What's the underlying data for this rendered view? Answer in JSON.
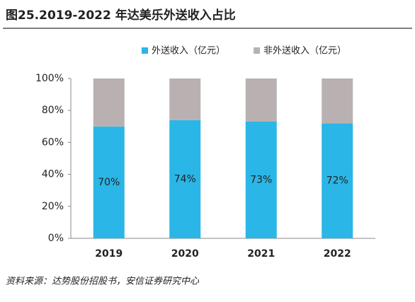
{
  "chart_data": {
    "type": "stacked_bar",
    "title": "图25.2019-2022 年达美乐外送收入占比",
    "categories": [
      "2019",
      "2020",
      "2021",
      "2022"
    ],
    "series": [
      {
        "name": "外送收入（亿元）",
        "color": "#2ab6e6",
        "values": [
          70,
          74,
          73,
          72
        ],
        "value_labels": [
          "70%",
          "74%",
          "73%",
          "72%"
        ]
      },
      {
        "name": "非外送收入（亿元）",
        "color": "#b9b1b1",
        "values": [
          30,
          26,
          27,
          28
        ]
      }
    ],
    "ylim": [
      0,
      100
    ],
    "yticks": [
      {
        "value": 0,
        "label": "0%"
      },
      {
        "value": 20,
        "label": "20%"
      },
      {
        "value": 40,
        "label": "40%"
      },
      {
        "value": 60,
        "label": "60%"
      },
      {
        "value": 80,
        "label": "80%"
      },
      {
        "value": 100,
        "label": "100%"
      }
    ],
    "legend": "top",
    "source": "资料来源：达势股份招股书，安信证券研究中心"
  }
}
